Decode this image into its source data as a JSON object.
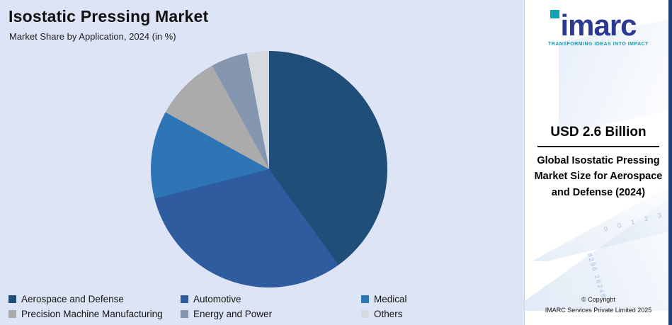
{
  "chart_data": {
    "type": "pie",
    "title": "Isostatic Pressing Market",
    "subtitle": "Market Share by Application, 2024 (in %)",
    "start_angle_deg": 0,
    "direction": "clockwise",
    "legend_position": "bottom",
    "slices": [
      {
        "label": "Aerospace and Defense",
        "value": 40,
        "color": "#1F4E79"
      },
      {
        "label": "Automotive",
        "value": 31,
        "color": "#2E5C9E"
      },
      {
        "label": "Medical",
        "value": 12,
        "color": "#2E75B6"
      },
      {
        "label": "Precision Machine Manufacturing",
        "value": 9,
        "color": "#ABABAB"
      },
      {
        "label": "Energy and Power",
        "value": 5,
        "color": "#8496B0"
      },
      {
        "label": "Others",
        "value": 3,
        "color": "#D6D9DE"
      }
    ],
    "panel_background": "#dde4f6"
  },
  "sidebar": {
    "logo_text": "imarc",
    "logo_dot_color": "#12a3b4",
    "logo_text_color": "#2b3a90",
    "tagline": "TRANSFORMING IDEAS INTO IMPACT",
    "stat_value": "USD 2.6 Billion",
    "stat_label": "Global Isostatic Pressing Market Size for Aerospace and Defense (2024)",
    "copyright_line1": "© Copyright",
    "copyright_line2": "IMARC Services Private Limited 2025",
    "watermark_numbers_row": "0 0 1 2 3",
    "watermark_numbers_col": "8296 26248"
  }
}
